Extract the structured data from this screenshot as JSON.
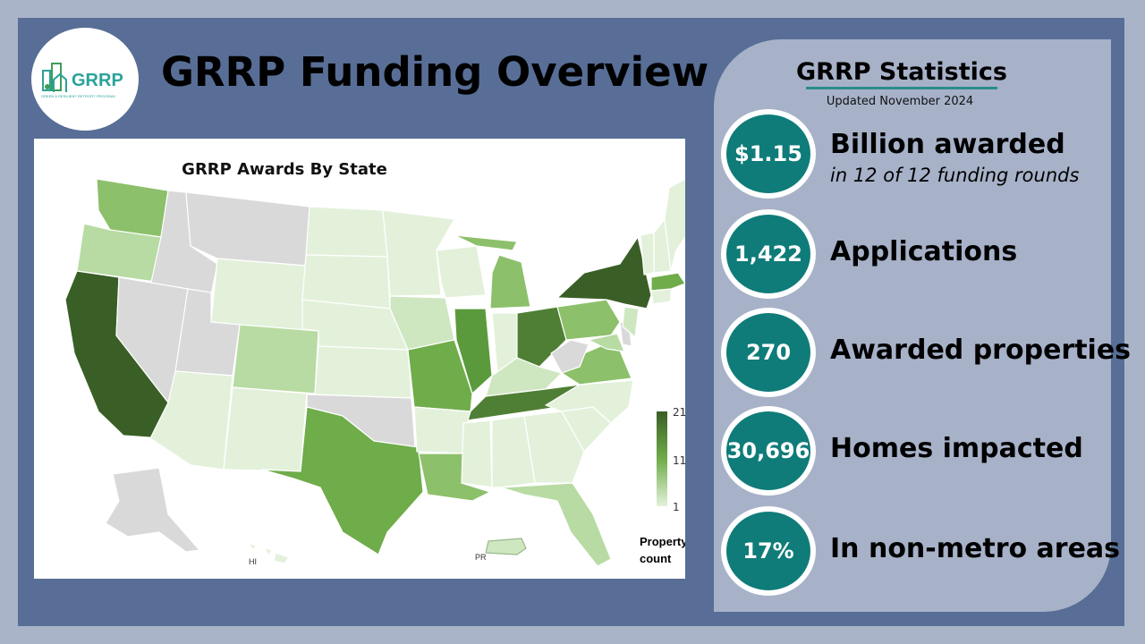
{
  "header": {
    "title": "GRRP Funding Overview",
    "logo_text": "GRRP",
    "logo_tagline": "GREEN & RESILIENT RETROFIT PROGRAM"
  },
  "map": {
    "title": "GRRP Awards By State",
    "legend": {
      "title_line1": "Property",
      "title_line2": "count",
      "max": "21",
      "mid": "11",
      "min": "1"
    },
    "inset_labels": {
      "hawaii": "HI",
      "puerto_rico": "PR"
    },
    "colors": {
      "none": "#d9d9d9",
      "low": "#e3f1db",
      "mid": "#6fac4a",
      "high": "#3a5f26"
    }
  },
  "stats": {
    "title": "GRRP Statistics",
    "updated": "Updated November 2024",
    "items": [
      {
        "value": "$1.15",
        "label": "Billion awarded",
        "sub": "in 12 of 12 funding rounds"
      },
      {
        "value": "1,422",
        "label": "Applications",
        "sub": ""
      },
      {
        "value": "270",
        "label": "Awarded properties",
        "sub": ""
      },
      {
        "value": "30,696",
        "label": "Homes impacted",
        "sub": ""
      },
      {
        "value": "17%",
        "label": "In non-metro areas",
        "sub": ""
      }
    ]
  },
  "colors": {
    "background": "#586e96",
    "panel": "#a7b2c9",
    "accent": "#0f7c79"
  }
}
